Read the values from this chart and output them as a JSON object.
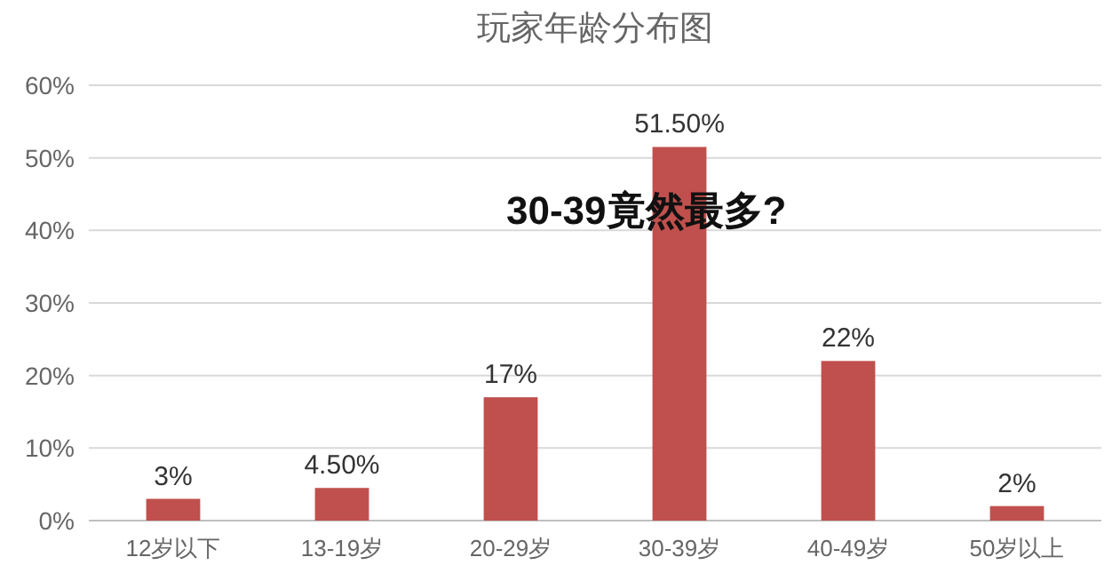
{
  "chart_data": {
    "type": "bar",
    "title": "玩家年龄分布图",
    "categories": [
      "12岁以下",
      "13-19岁",
      "20-29岁",
      "30-39岁",
      "40-49岁",
      "50岁以上"
    ],
    "values": [
      3,
      4.5,
      17,
      51.5,
      22,
      2
    ],
    "value_labels": [
      "3%",
      "4.50%",
      "17%",
      "51.50%",
      "22%",
      "2%"
    ],
    "color": "#c0504d",
    "ylim": [
      0,
      60
    ],
    "yticks": [
      {
        "value": 0,
        "label": "0%"
      },
      {
        "value": 10,
        "label": "10%"
      },
      {
        "value": 20,
        "label": "20%"
      },
      {
        "value": 30,
        "label": "30%"
      },
      {
        "value": 40,
        "label": "40%"
      },
      {
        "value": 50,
        "label": "50%"
      },
      {
        "value": 60,
        "label": "60%"
      }
    ],
    "grid": "y",
    "annotations": [
      "30-39竟然最多?"
    ]
  }
}
